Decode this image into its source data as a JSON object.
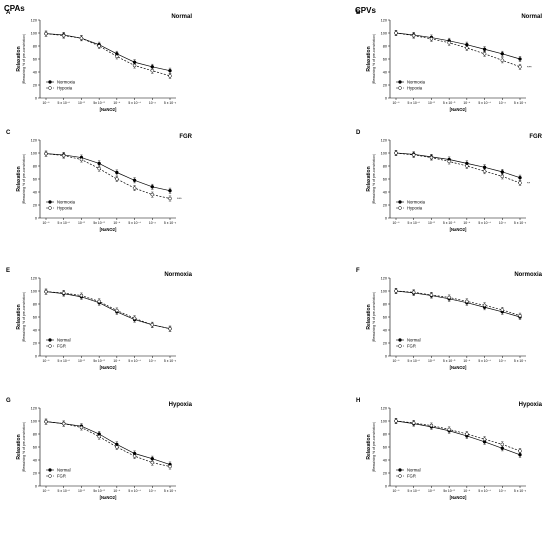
{
  "headers": {
    "left": "CPAs",
    "right": "CPVs"
  },
  "chart_data": [
    {
      "id": "A",
      "type": "line",
      "title": "Normal",
      "ylabel": "Relaxation",
      "ylabel_sub": "(Remaining % of pre-constriction)",
      "xlabel": "[NaNO2]",
      "ylim": [
        0,
        120
      ],
      "yticks": [
        "0",
        "20",
        "40",
        "60",
        "80",
        "100",
        "120"
      ],
      "categories": [
        "10⁻⁶",
        "5 x 10⁻⁶",
        "10⁻⁵",
        "5x 10⁻⁵",
        "10⁻⁴",
        "5 x 10⁻⁴",
        "10⁻³",
        "5 x 10⁻³"
      ],
      "legend_position": "bottom-left",
      "annotation": "",
      "series": [
        {
          "name": "Normoxia",
          "marker": "filled",
          "dash": false,
          "values": [
            99,
            97,
            92,
            82,
            68,
            55,
            48,
            42
          ]
        },
        {
          "name": "Hypoxia",
          "marker": "open",
          "dash": true,
          "values": [
            99,
            96,
            92,
            80,
            64,
            50,
            42,
            34
          ]
        }
      ]
    },
    {
      "id": "B",
      "type": "line",
      "title": "Normal",
      "ylabel": "Relaxation",
      "ylabel_sub": "(Remaining % of pre-constriction)",
      "xlabel": "[NaNO2]",
      "ylim": [
        0,
        120
      ],
      "yticks": [
        "0",
        "20",
        "40",
        "60",
        "80",
        "100",
        "120"
      ],
      "categories": [
        "10⁻⁶",
        "5 x 10⁻⁶",
        "10⁻⁵",
        "5 x 10⁻⁵",
        "10⁻⁴",
        "5 x 10⁻⁴",
        "10⁻³",
        "5 x 10⁻³"
      ],
      "legend_position": "bottom-left",
      "annotation": "***",
      "series": [
        {
          "name": "Normoxia",
          "marker": "filled",
          "dash": false,
          "values": [
            100,
            97,
            93,
            88,
            82,
            75,
            68,
            60
          ]
        },
        {
          "name": "Hypoxia",
          "marker": "open",
          "dash": true,
          "values": [
            100,
            96,
            91,
            85,
            77,
            68,
            58,
            48
          ]
        }
      ]
    },
    {
      "id": "C",
      "type": "line",
      "title": "FGR",
      "ylabel": "Relaxation",
      "ylabel_sub": "(Remaining % of pre-constriction)",
      "xlabel": "[NaNO2]",
      "ylim": [
        0,
        120
      ],
      "yticks": [
        "0",
        "20",
        "40",
        "60",
        "80",
        "100",
        "120"
      ],
      "categories": [
        "10⁻⁶",
        "5 x 10⁻⁶",
        "10⁻⁵",
        "5x 10⁻⁵",
        "10⁻⁴",
        "5 x 10⁻⁴",
        "10⁻³",
        "5 x 10⁻³"
      ],
      "legend_position": "bottom-left",
      "annotation": "***",
      "series": [
        {
          "name": "Normoxia",
          "marker": "filled",
          "dash": false,
          "values": [
            99,
            97,
            93,
            84,
            70,
            58,
            48,
            42
          ]
        },
        {
          "name": "Hypoxia",
          "marker": "open",
          "dash": true,
          "values": [
            99,
            96,
            90,
            76,
            60,
            46,
            36,
            30
          ]
        }
      ]
    },
    {
      "id": "D",
      "type": "line",
      "title": "FGR",
      "ylabel": "Relaxation",
      "ylabel_sub": "(Remaining % of pre-constriction)",
      "xlabel": "[NaNO2]",
      "ylim": [
        0,
        120
      ],
      "yticks": [
        "0",
        "20",
        "40",
        "60",
        "80",
        "100",
        "120"
      ],
      "categories": [
        "10⁻⁶",
        "5 x 10⁻⁶",
        "10⁻⁵",
        "5 x 10⁻⁵",
        "10⁻⁴",
        "5 x 10⁻⁴",
        "10⁻³",
        "5 x 10⁻³"
      ],
      "legend_position": "bottom-left",
      "annotation": "**",
      "series": [
        {
          "name": "Normoxia",
          "marker": "filled",
          "dash": false,
          "values": [
            100,
            98,
            94,
            90,
            84,
            78,
            71,
            62
          ]
        },
        {
          "name": "Hypoxia",
          "marker": "open",
          "dash": true,
          "values": [
            100,
            97,
            93,
            87,
            80,
            72,
            64,
            54
          ]
        }
      ]
    },
    {
      "id": "E",
      "type": "line",
      "title": "Normoxia",
      "ylabel": "Relaxation",
      "ylabel_sub": "(Remaining % of pre-constriction)",
      "xlabel": "[NaNO2]",
      "ylim": [
        0,
        120
      ],
      "yticks": [
        "0",
        "20",
        "40",
        "60",
        "80",
        "100",
        "120"
      ],
      "categories": [
        "10⁻⁶",
        "5 x 10⁻⁶",
        "10⁻⁵",
        "5x 10⁻⁵",
        "10⁻⁴",
        "5 x 10⁻⁴",
        "10⁻³",
        "5 x 10⁻³"
      ],
      "legend_position": "bottom-left",
      "annotation": "",
      "series": [
        {
          "name": "Normal",
          "marker": "filled",
          "dash": false,
          "values": [
            99,
            96,
            91,
            82,
            68,
            56,
            48,
            42
          ]
        },
        {
          "name": "FGR",
          "marker": "open",
          "dash": true,
          "values": [
            99,
            97,
            93,
            84,
            70,
            58,
            48,
            42
          ]
        }
      ]
    },
    {
      "id": "F",
      "type": "line",
      "title": "Normoxia",
      "ylabel": "Relaxation",
      "ylabel_sub": "(Remaining % of pre-constriction)",
      "xlabel": "[NaNO2]",
      "ylim": [
        0,
        120
      ],
      "yticks": [
        "0",
        "20",
        "40",
        "60",
        "80",
        "100",
        "120"
      ],
      "categories": [
        "10⁻⁶",
        "5 x 10⁻⁶",
        "10⁻⁵",
        "5 x 10⁻⁵",
        "10⁻⁴",
        "5 x 10⁻⁴",
        "10⁻³",
        "5 x 10⁻³"
      ],
      "legend_position": "bottom-left",
      "annotation": "",
      "series": [
        {
          "name": "Normal",
          "marker": "filled",
          "dash": false,
          "values": [
            100,
            97,
            93,
            88,
            82,
            75,
            68,
            60
          ]
        },
        {
          "name": "FGR",
          "marker": "open",
          "dash": true,
          "values": [
            100,
            98,
            94,
            90,
            84,
            78,
            71,
            62
          ]
        }
      ]
    },
    {
      "id": "G",
      "type": "line",
      "title": "Hypoxia",
      "ylabel": "Relaxation",
      "ylabel_sub": "(Remaining % of pre-constriction)",
      "xlabel": "[NaNO2]",
      "ylim": [
        0,
        120
      ],
      "yticks": [
        "0",
        "20",
        "40",
        "60",
        "80",
        "100",
        "120"
      ],
      "categories": [
        "10⁻⁶",
        "5 x 10⁻⁶",
        "10⁻⁵",
        "5x 10⁻⁵",
        "10⁻⁴",
        "5 x 10⁻⁴",
        "10⁻³",
        "5 x 10⁻³"
      ],
      "legend_position": "bottom-left",
      "annotation": "",
      "series": [
        {
          "name": "Normal",
          "marker": "filled",
          "dash": false,
          "values": [
            99,
            96,
            92,
            80,
            64,
            50,
            42,
            33
          ]
        },
        {
          "name": "FGR",
          "marker": "open",
          "dash": true,
          "values": [
            99,
            96,
            90,
            76,
            60,
            46,
            36,
            30
          ]
        }
      ]
    },
    {
      "id": "H",
      "type": "line",
      "title": "Hypoxia",
      "ylabel": "Relaxation",
      "ylabel_sub": "(Remaining % of pre-constriction)",
      "xlabel": "[NaNO2]",
      "ylim": [
        0,
        120
      ],
      "yticks": [
        "0",
        "20",
        "40",
        "60",
        "80",
        "100",
        "120"
      ],
      "categories": [
        "10⁻⁶",
        "5 x 10⁻⁶",
        "10⁻⁵",
        "5x 10⁻⁵",
        "10⁻⁴",
        "5 x 10⁻⁴",
        "10⁻³",
        "5 x 10⁻³"
      ],
      "legend_position": "bottom-left",
      "annotation": "",
      "series": [
        {
          "name": "Normal",
          "marker": "filled",
          "dash": false,
          "values": [
            100,
            96,
            91,
            85,
            77,
            68,
            58,
            48
          ]
        },
        {
          "name": "FGR",
          "marker": "open",
          "dash": true,
          "values": [
            100,
            97,
            93,
            87,
            80,
            72,
            64,
            54
          ]
        }
      ]
    }
  ]
}
